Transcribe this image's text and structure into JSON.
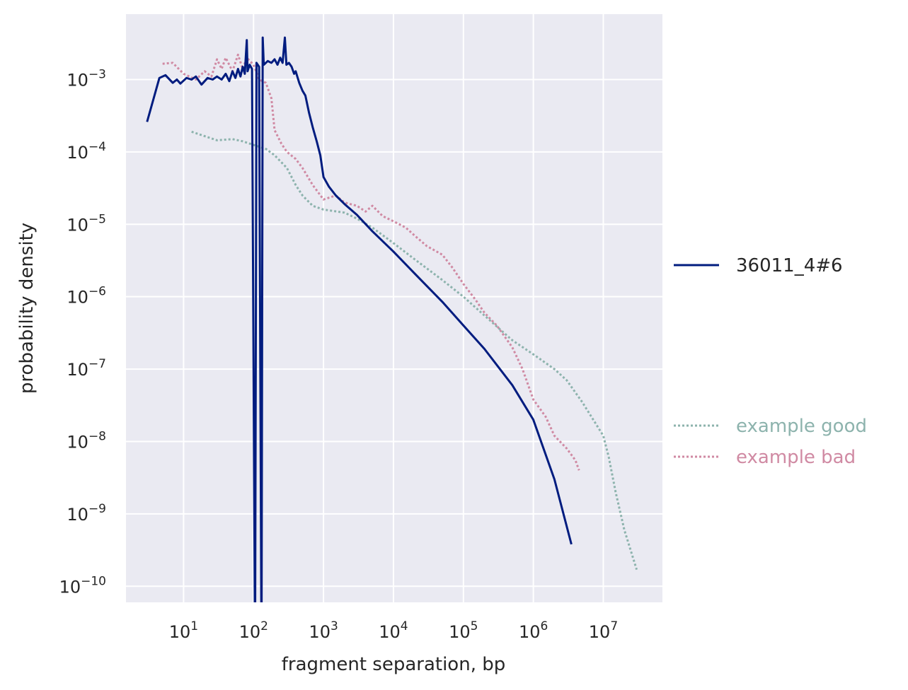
{
  "chart_data": {
    "type": "line",
    "xlabel": "fragment separation, bp",
    "ylabel": "probability density",
    "x_scale": "log",
    "y_scale": "log",
    "xlim": [
      1.5,
      70000000
    ],
    "ylim": [
      6e-11,
      0.008
    ],
    "x_ticks": [
      {
        "value": 10,
        "base": "10",
        "exp": "1"
      },
      {
        "value": 100,
        "base": "10",
        "exp": "2"
      },
      {
        "value": 1000,
        "base": "10",
        "exp": "3"
      },
      {
        "value": 10000,
        "base": "10",
        "exp": "4"
      },
      {
        "value": 100000,
        "base": "10",
        "exp": "5"
      },
      {
        "value": 1000000,
        "base": "10",
        "exp": "6"
      },
      {
        "value": 10000000,
        "base": "10",
        "exp": "7"
      }
    ],
    "y_ticks": [
      {
        "value": 0.001,
        "base": "10",
        "exp": "−3"
      },
      {
        "value": 0.0001,
        "base": "10",
        "exp": "−4"
      },
      {
        "value": 1e-05,
        "base": "10",
        "exp": "−5"
      },
      {
        "value": 1e-06,
        "base": "10",
        "exp": "−6"
      },
      {
        "value": 1e-07,
        "base": "10",
        "exp": "−7"
      },
      {
        "value": 1e-08,
        "base": "10",
        "exp": "−8"
      },
      {
        "value": 1e-09,
        "base": "10",
        "exp": "−9"
      },
      {
        "value": 1e-10,
        "base": "10",
        "exp": "−10"
      }
    ],
    "grid": true,
    "legend_placement": "right, outside plot",
    "series": [
      {
        "name": "36011_4#6",
        "color": "#001c7f",
        "style": "solid",
        "points": [
          [
            3,
            0.00026
          ],
          [
            4.5,
            0.00105
          ],
          [
            5.5,
            0.00115
          ],
          [
            7,
            0.0009
          ],
          [
            8,
            0.001
          ],
          [
            9,
            0.00088
          ],
          [
            11,
            0.00105
          ],
          [
            13,
            0.001
          ],
          [
            15,
            0.0011
          ],
          [
            18,
            0.00085
          ],
          [
            22,
            0.00105
          ],
          [
            26,
            0.001
          ],
          [
            30,
            0.0011
          ],
          [
            35,
            0.001
          ],
          [
            40,
            0.0012
          ],
          [
            45,
            0.00095
          ],
          [
            50,
            0.0013
          ],
          [
            55,
            0.00105
          ],
          [
            60,
            0.0014
          ],
          [
            65,
            0.0011
          ],
          [
            70,
            0.0015
          ],
          [
            75,
            0.0012
          ],
          [
            80,
            0.0035
          ],
          [
            82,
            0.0013
          ],
          [
            88,
            0.0016
          ],
          [
            95,
            0.0014
          ],
          [
            105,
            1e-11
          ],
          [
            110,
            0.0017
          ],
          [
            120,
            0.0015
          ],
          [
            130,
            1e-11
          ],
          [
            135,
            0.0038
          ],
          [
            140,
            0.0016
          ],
          [
            160,
            0.0018
          ],
          [
            180,
            0.0017
          ],
          [
            200,
            0.0019
          ],
          [
            220,
            0.0016
          ],
          [
            240,
            0.002
          ],
          [
            260,
            0.0017
          ],
          [
            280,
            0.0038
          ],
          [
            295,
            0.0016
          ],
          [
            320,
            0.0017
          ],
          [
            350,
            0.0015
          ],
          [
            380,
            0.0012
          ],
          [
            400,
            0.0013
          ],
          [
            450,
            0.0009
          ],
          [
            500,
            0.0007
          ],
          [
            550,
            0.0006
          ],
          [
            620,
            0.00035
          ],
          [
            700,
            0.00022
          ],
          [
            800,
            0.00014
          ],
          [
            900,
            9e-05
          ],
          [
            1000,
            4.5e-05
          ],
          [
            1200,
            3.3e-05
          ],
          [
            1500,
            2.5e-05
          ],
          [
            2000,
            1.9e-05
          ],
          [
            3000,
            1.35e-05
          ],
          [
            5000,
            8e-06
          ],
          [
            10000,
            4.2e-06
          ],
          [
            20000,
            2.1e-06
          ],
          [
            50000,
            8.5e-07
          ],
          [
            100000,
            4e-07
          ],
          [
            200000,
            1.9e-07
          ],
          [
            500000,
            6e-08
          ],
          [
            1000000,
            2e-08
          ],
          [
            2000000,
            3e-09
          ],
          [
            3500000,
            3.8e-10
          ]
        ]
      },
      {
        "name": "example good",
        "color": "#8db3ad",
        "style": "dotted",
        "points": [
          [
            13,
            0.00019
          ],
          [
            20,
            0.000165
          ],
          [
            30,
            0.000145
          ],
          [
            50,
            0.00015
          ],
          [
            70,
            0.00014
          ],
          [
            100,
            0.000125
          ],
          [
            150,
            0.00011
          ],
          [
            200,
            9e-05
          ],
          [
            300,
            6e-05
          ],
          [
            400,
            3.5e-05
          ],
          [
            500,
            2.5e-05
          ],
          [
            700,
            1.8e-05
          ],
          [
            1000,
            1.6e-05
          ],
          [
            2000,
            1.45e-05
          ],
          [
            3000,
            1.2e-05
          ],
          [
            5000,
            9e-06
          ],
          [
            10000,
            5.5e-06
          ],
          [
            20000,
            3.3e-06
          ],
          [
            50000,
            1.7e-06
          ],
          [
            100000,
            1e-06
          ],
          [
            200000,
            5.5e-07
          ],
          [
            500000,
            2.5e-07
          ],
          [
            1000000,
            1.6e-07
          ],
          [
            2000000,
            1e-07
          ],
          [
            3000000,
            7e-08
          ],
          [
            5000000,
            3.5e-08
          ],
          [
            10000000,
            1.2e-08
          ],
          [
            12000000,
            6e-09
          ],
          [
            15000000,
            2e-09
          ],
          [
            20000000,
            6e-10
          ],
          [
            30000000,
            1.7e-10
          ]
        ]
      },
      {
        "name": "example bad",
        "color": "#d08aa3",
        "style": "dotted",
        "points": [
          [
            5,
            0.00165
          ],
          [
            7,
            0.0017
          ],
          [
            10,
            0.0012
          ],
          [
            15,
            0.001
          ],
          [
            20,
            0.0013
          ],
          [
            25,
            0.0011
          ],
          [
            30,
            0.0019
          ],
          [
            35,
            0.0014
          ],
          [
            40,
            0.002
          ],
          [
            50,
            0.0013
          ],
          [
            60,
            0.0022
          ],
          [
            70,
            0.0014
          ],
          [
            80,
            0.002
          ],
          [
            100,
            0.0016
          ],
          [
            120,
            0.001
          ],
          [
            150,
            0.0009
          ],
          [
            180,
            0.00055
          ],
          [
            200,
            0.0002
          ],
          [
            250,
            0.00013
          ],
          [
            300,
            0.0001
          ],
          [
            400,
            8e-05
          ],
          [
            500,
            6e-05
          ],
          [
            700,
            3.5e-05
          ],
          [
            1000,
            2.2e-05
          ],
          [
            1500,
            2.5e-05
          ],
          [
            2000,
            2e-05
          ],
          [
            3000,
            1.8e-05
          ],
          [
            4000,
            1.5e-05
          ],
          [
            5000,
            1.8e-05
          ],
          [
            7000,
            1.3e-05
          ],
          [
            10000,
            1.1e-05
          ],
          [
            15000,
            9e-06
          ],
          [
            20000,
            7e-06
          ],
          [
            30000,
            5e-06
          ],
          [
            50000,
            3.8e-06
          ],
          [
            70000,
            2.5e-06
          ],
          [
            100000,
            1.5e-06
          ],
          [
            150000,
            9e-07
          ],
          [
            200000,
            6e-07
          ],
          [
            300000,
            4e-07
          ],
          [
            500000,
            2e-07
          ],
          [
            700000,
            1e-07
          ],
          [
            1000000,
            3.8e-08
          ],
          [
            1500000,
            2.2e-08
          ],
          [
            2000000,
            1.2e-08
          ],
          [
            3000000,
            8e-09
          ],
          [
            4000000,
            5.5e-09
          ],
          [
            4500000,
            4e-09
          ]
        ]
      }
    ],
    "legend": [
      {
        "label": "36011_4#6",
        "color": "#001c7f",
        "text_color": "#262626",
        "style": "solid"
      },
      {
        "label": "example good",
        "color": "#8db3ad",
        "text_color": "#8db3ad",
        "style": "dotted"
      },
      {
        "label": "example bad",
        "color": "#d08aa3",
        "text_color": "#d08aa3",
        "style": "dotted"
      }
    ]
  }
}
